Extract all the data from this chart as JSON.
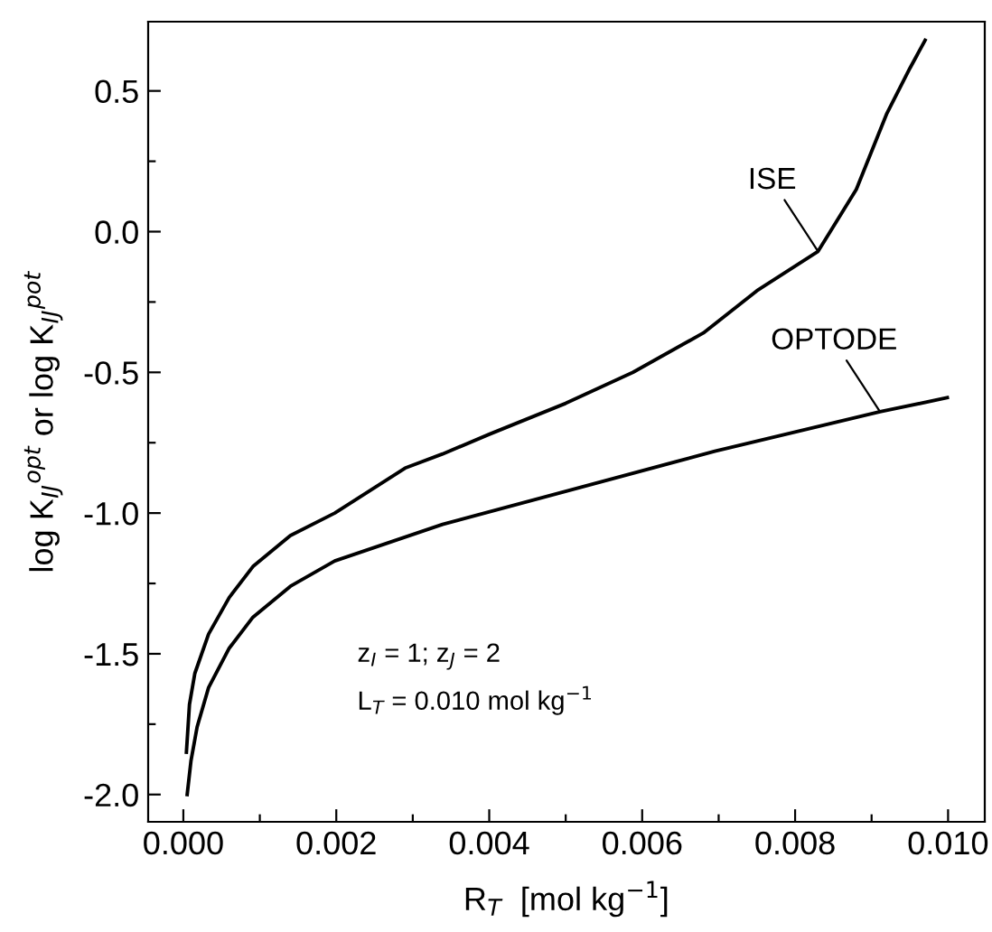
{
  "chart_data": {
    "type": "line",
    "xlabel": "R$_{T}$  [mol kg$^{−1}$]",
    "ylabel": "log K$_{IJ}$$^{opt}$ or log K$_{IJ}$$^{pot}$",
    "xlim": [
      -0.00046,
      0.01048
    ],
    "ylim": [
      -2.097,
      0.746
    ],
    "xticks": [
      {
        "value": 0,
        "label": "0.000"
      },
      {
        "value": 0.001,
        "label": null
      },
      {
        "value": 0.002,
        "label": "0.002"
      },
      {
        "value": 0.003,
        "label": null
      },
      {
        "value": 0.004,
        "label": "0.004"
      },
      {
        "value": 0.005,
        "label": null
      },
      {
        "value": 0.006,
        "label": "0.006"
      },
      {
        "value": 0.007,
        "label": null
      },
      {
        "value": 0.008,
        "label": "0.008"
      },
      {
        "value": 0.009,
        "label": null
      },
      {
        "value": 0.01,
        "label": "0.010"
      }
    ],
    "yticks": [
      {
        "value": -2.0,
        "label": "-2.0"
      },
      {
        "value": -1.75,
        "label": null
      },
      {
        "value": -1.5,
        "label": "-1.5"
      },
      {
        "value": -1.25,
        "label": null
      },
      {
        "value": -1.0,
        "label": "-1.0"
      },
      {
        "value": -0.75,
        "label": null
      },
      {
        "value": -0.5,
        "label": "-0.5"
      },
      {
        "value": -0.25,
        "label": null
      },
      {
        "value": 0.0,
        "label": "0.0"
      },
      {
        "value": 0.25,
        "label": null
      },
      {
        "value": 0.5,
        "label": "0.5"
      }
    ],
    "grid": false,
    "legend": false,
    "marker": "none",
    "line_style": "solid",
    "series": [
      {
        "name": "ISE",
        "color": "#000000",
        "x": [
          4e-05,
          8e-05,
          0.00015,
          0.00033,
          0.0006,
          0.00091,
          0.0014,
          0.00198,
          0.0029,
          0.00339,
          0.004,
          0.005,
          0.00588,
          0.0068,
          0.0075,
          0.0083,
          0.0088,
          0.0092,
          0.0095,
          0.0097
        ],
        "values": [
          -1.85,
          -1.68,
          -1.57,
          -1.43,
          -1.3,
          -1.19,
          -1.08,
          -1.0,
          -0.84,
          -0.79,
          -0.72,
          -0.61,
          -0.5,
          -0.36,
          -0.21,
          -0.07,
          0.15,
          0.42,
          0.58,
          0.68
        ]
      },
      {
        "name": "OPTODE",
        "color": "#000000",
        "x": [
          5e-05,
          0.0001,
          0.00018,
          0.00033,
          0.0006,
          0.00091,
          0.0014,
          0.00198,
          0.00339,
          0.00504,
          0.00695,
          0.00911,
          0.00999
        ],
        "values": [
          -2.0,
          -1.88,
          -1.76,
          -1.62,
          -1.48,
          -1.37,
          -1.26,
          -1.17,
          -1.04,
          -0.92,
          -0.78,
          -0.64,
          -0.59
        ]
      }
    ],
    "annotations": [
      "z$_{I}$ = 1; z$_{J}$ = 2",
      "L$_{T}$ = 0.010 mol kg$^{−1}$"
    ]
  }
}
